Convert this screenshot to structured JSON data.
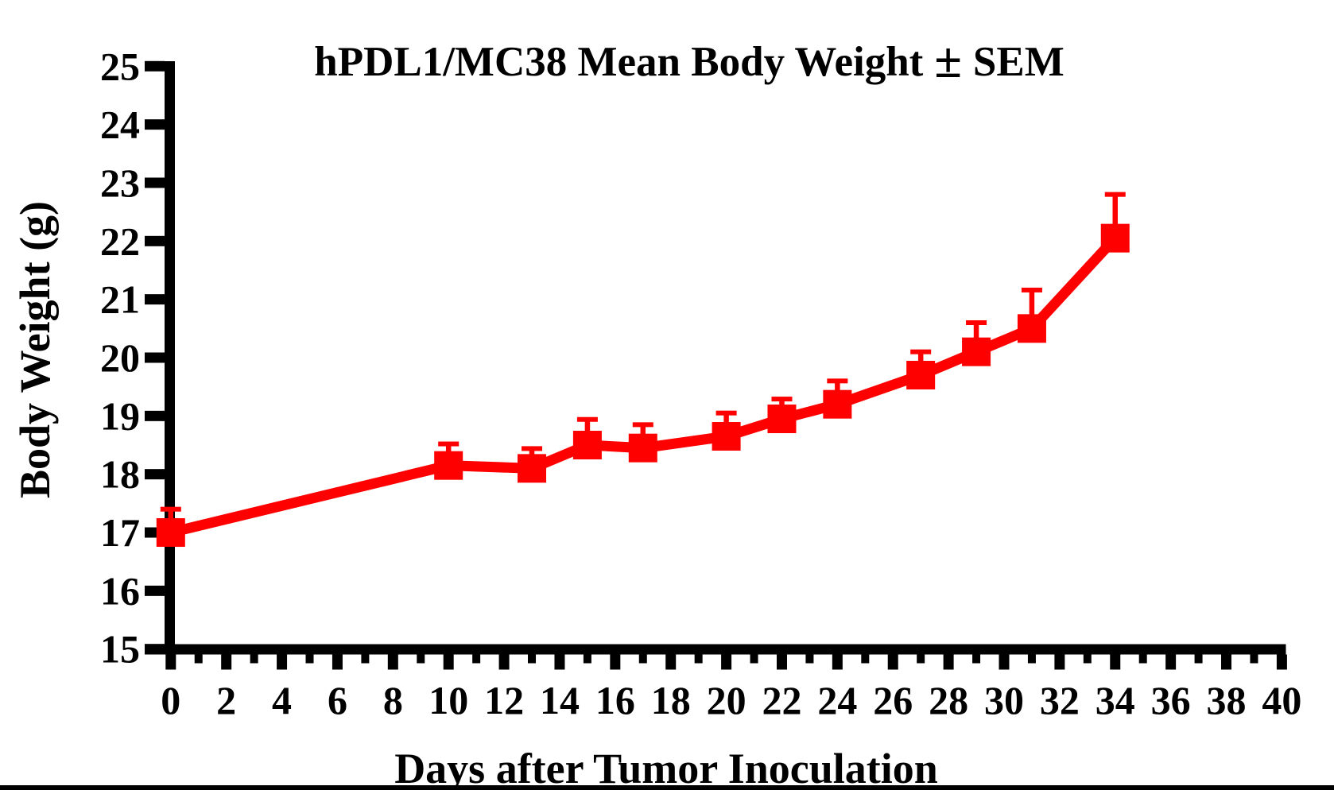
{
  "title_parts": [
    "hPDL1/MC38 Mean Body Weight",
    "±",
    "SEM"
  ],
  "chart_data": {
    "type": "line",
    "title": "hPDL1/MC38 Mean Body Weight ± SEM",
    "xlabel": "Days after Tumor Inoculation",
    "ylabel": "Body Weight (g)",
    "xlim": [
      0,
      40
    ],
    "ylim": [
      15,
      25
    ],
    "grid": "off",
    "legend": "none",
    "error_bars": "upper SEM only, with caps",
    "axis_color": "#000000",
    "x_tick_labels": [
      "0",
      "2",
      "4",
      "6",
      "8",
      "10",
      "12",
      "14",
      "16",
      "18",
      "20",
      "22",
      "24",
      "26",
      "28",
      "30",
      "32",
      "34",
      "36",
      "38",
      "40"
    ],
    "x_minor_ticks_every": 1,
    "y_tick_labels": [
      "15",
      "16",
      "17",
      "18",
      "19",
      "20",
      "21",
      "22",
      "23",
      "24",
      "25"
    ],
    "series": [
      {
        "name": "hPDL1/MC38 mean body weight",
        "color": "#ff0000",
        "marker": "square",
        "x": [
          0,
          10,
          13,
          15,
          17,
          20,
          22,
          24,
          27,
          29,
          31,
          34
        ],
        "y": [
          17.0,
          18.15,
          18.1,
          18.5,
          18.45,
          18.65,
          18.95,
          19.2,
          19.7,
          20.1,
          20.5,
          22.05
        ],
        "sem": [
          0.4,
          0.37,
          0.34,
          0.44,
          0.4,
          0.4,
          0.34,
          0.4,
          0.4,
          0.5,
          0.66,
          0.75
        ]
      }
    ]
  }
}
